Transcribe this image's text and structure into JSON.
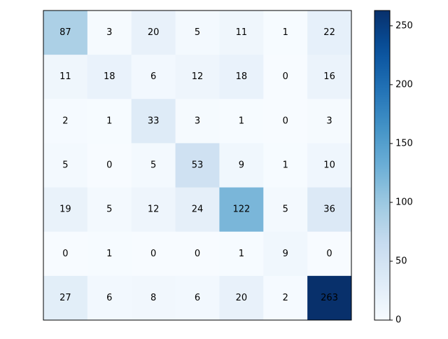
{
  "chart_data": {
    "type": "heatmap",
    "title": "",
    "xlabel": "",
    "ylabel": "",
    "grid": false,
    "colormap": "Blues",
    "colorbar": {
      "min": 0,
      "max": 263,
      "ticks": [
        0,
        50,
        100,
        150,
        200,
        250
      ],
      "placement": "right"
    },
    "matrix": [
      [
        87,
        3,
        20,
        5,
        11,
        1,
        22
      ],
      [
        11,
        18,
        6,
        12,
        18,
        0,
        16
      ],
      [
        2,
        1,
        33,
        3,
        1,
        0,
        3
      ],
      [
        5,
        0,
        5,
        53,
        9,
        1,
        10
      ],
      [
        19,
        5,
        12,
        24,
        122,
        5,
        36
      ],
      [
        0,
        1,
        0,
        0,
        1,
        9,
        0
      ],
      [
        27,
        6,
        8,
        6,
        20,
        2,
        263
      ]
    ]
  }
}
